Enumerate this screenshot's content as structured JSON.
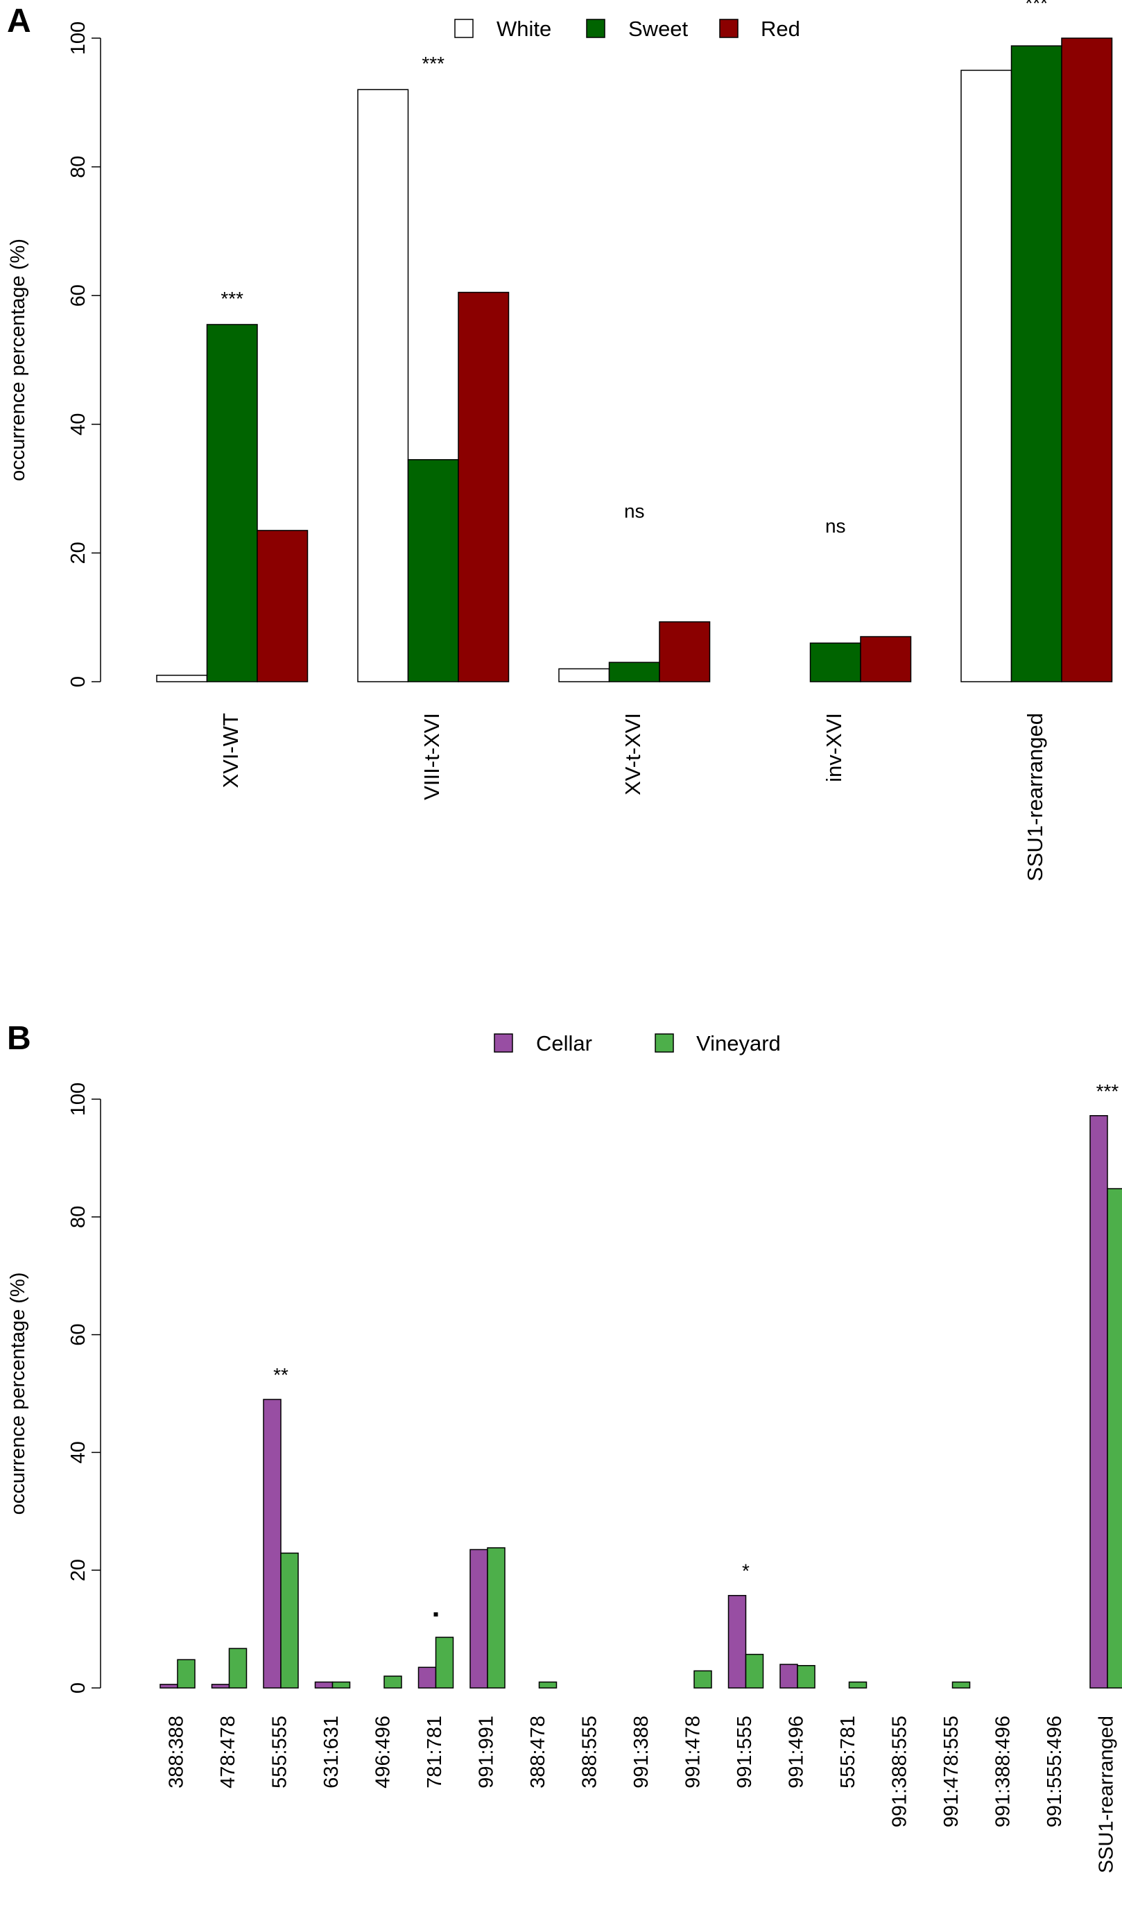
{
  "chart_data": [
    {
      "type": "bar",
      "panel_label": "A",
      "title": "",
      "xlabel": "",
      "ylabel": "occurrence percentage (%)",
      "ylim": [
        0,
        100
      ],
      "yticks": [
        "0",
        "20",
        "40",
        "60",
        "80",
        "100"
      ],
      "grid": false,
      "legend_position": "top-center",
      "categories": [
        "XVI-WT",
        "VIII-t-XVI",
        "XV-t-XVI",
        "inv-XVI",
        "SSU1-rearranged"
      ],
      "series": [
        {
          "name": "White",
          "color": "#ffffff",
          "values": [
            1,
            92,
            2,
            0,
            95
          ]
        },
        {
          "name": "Sweet",
          "color": "#006400",
          "values": [
            55.5,
            34.5,
            3,
            6,
            98.8
          ]
        },
        {
          "name": "Red",
          "color": "#8b0000",
          "values": [
            23.5,
            60.5,
            9.3,
            7,
            100
          ]
        }
      ],
      "annotations": [
        "***",
        "***",
        "ns",
        "ns",
        "***"
      ]
    },
    {
      "type": "bar",
      "panel_label": "B",
      "title": "",
      "xlabel": "",
      "ylabel": "occurrence percentage (%)",
      "ylim": [
        0,
        100
      ],
      "yticks": [
        "0",
        "20",
        "40",
        "60",
        "80",
        "100"
      ],
      "grid": false,
      "legend_position": "top-center",
      "categories": [
        "388:388",
        "478:478",
        "555:555",
        "631:631",
        "496:496",
        "781:781",
        "991:991",
        "388:478",
        "388:555",
        "991:388",
        "991:478",
        "991:555",
        "991:496",
        "555:781",
        "991:388:555",
        "991:478:555",
        "991:388:496",
        "991:555:496",
        "SSU1-rearranged"
      ],
      "series": [
        {
          "name": "Cellar",
          "color": "#984ea3",
          "values": [
            0.6,
            0.6,
            49,
            1,
            0,
            3.5,
            23.5,
            0,
            0,
            0,
            0,
            15.7,
            4,
            0,
            0,
            0,
            0,
            0,
            97.2
          ]
        },
        {
          "name": "Vineyard",
          "color": "#4daf4a",
          "values": [
            4.8,
            6.7,
            22.9,
            1,
            2,
            8.6,
            23.8,
            1,
            0,
            0,
            2.9,
            5.7,
            3.8,
            1,
            0,
            1,
            0,
            0,
            84.8
          ]
        }
      ],
      "annotations": [
        "",
        "",
        "**",
        "",
        "",
        ".",
        "",
        "",
        "",
        "",
        "",
        "*",
        "",
        "",
        "",
        "",
        "",
        "",
        "***"
      ]
    }
  ]
}
